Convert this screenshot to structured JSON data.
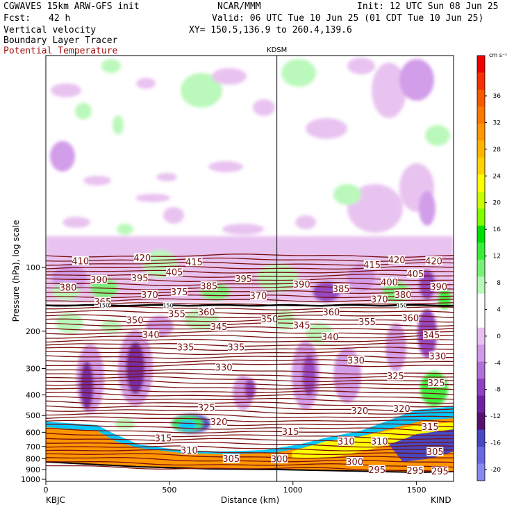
{
  "header": {
    "model_title": "CGWAVES 15km ARW-GFS init",
    "org": "NCAR/MMM",
    "init": "Init: 12 UTC Sun 08 Jun 25",
    "fcst_label": "Fcst:",
    "fcst_value": "42 h",
    "valid": "Valid: 06 UTC Tue 10 Jun 25 (01 CDT Tue 10 Jun 25)",
    "field1": "Vertical velocity",
    "field2": "Boundary Layer Tracer",
    "field3": "Potential Temperature",
    "xy_range": "XY= 150.5,136.9 to 260.4,139.6"
  },
  "colors": {
    "potential_temperature": "#7a0f0f",
    "tropopause_line": "#000000"
  },
  "chart_data": {
    "type": "cross-section",
    "station_marker": "KDSM",
    "station_marker_x_km": 935,
    "left_endpoint": "KBJC",
    "right_endpoint": "KIND",
    "xlabel": "Distance (km)",
    "ylabel": "Pressure (hPa), log scale",
    "xlim": [
      0,
      1650
    ],
    "x_ticks": [
      0,
      500,
      1000,
      1500
    ],
    "y_ticks": [
      100,
      200,
      300,
      400,
      500,
      600,
      700,
      800,
      900,
      1000
    ],
    "y_scale": "log",
    "colorbar": {
      "units": "cm s⁻¹",
      "tick_labels": [
        36,
        32,
        28,
        24,
        20,
        16,
        12,
        8,
        4,
        0,
        -4,
        -8,
        -12,
        -16,
        -20
      ],
      "colors": [
        "#f00000",
        "#f43000",
        "#f85800",
        "#fc7800",
        "#ff9600",
        "#ffb400",
        "#ffd200",
        "#ffff00",
        "#c8ff00",
        "#80ff00",
        "#00e000",
        "#38ee38",
        "#78f078",
        "#b8f8b8",
        "#ffffff",
        "#ffffff",
        "#e8c0f0",
        "#d098e8",
        "#b070d8",
        "#9040c0",
        "#7020a0",
        "#5a1070",
        "#4848c0",
        "#6868e0",
        "#8888f0"
      ]
    },
    "theta_labels": [
      {
        "x": 140,
        "p": 93,
        "v": "410"
      },
      {
        "x": 390,
        "p": 90,
        "v": "420"
      },
      {
        "x": 600,
        "p": 94,
        "v": "415"
      },
      {
        "x": 1320,
        "p": 97,
        "v": "415"
      },
      {
        "x": 1420,
        "p": 92,
        "v": "420"
      },
      {
        "x": 1570,
        "p": 93,
        "v": "420"
      },
      {
        "x": 520,
        "p": 105,
        "v": "405"
      },
      {
        "x": 1495,
        "p": 107,
        "v": "405"
      },
      {
        "x": 215,
        "p": 114,
        "v": "390"
      },
      {
        "x": 380,
        "p": 112,
        "v": "395"
      },
      {
        "x": 800,
        "p": 113,
        "v": "395"
      },
      {
        "x": 1035,
        "p": 120,
        "v": "390"
      },
      {
        "x": 1390,
        "p": 117,
        "v": "400"
      },
      {
        "x": 1590,
        "p": 123,
        "v": "390"
      },
      {
        "x": 90,
        "p": 124,
        "v": "380"
      },
      {
        "x": 660,
        "p": 122,
        "v": "385"
      },
      {
        "x": 1195,
        "p": 126,
        "v": "385"
      },
      {
        "x": 1445,
        "p": 134,
        "v": "380"
      },
      {
        "x": 420,
        "p": 134,
        "v": "370"
      },
      {
        "x": 540,
        "p": 130,
        "v": "375"
      },
      {
        "x": 860,
        "p": 136,
        "v": "370"
      },
      {
        "x": 230,
        "p": 145,
        "v": "365"
      },
      {
        "x": 1350,
        "p": 141,
        "v": "370"
      },
      {
        "x": 650,
        "p": 162,
        "v": "360"
      },
      {
        "x": 1155,
        "p": 162,
        "v": "360"
      },
      {
        "x": 1475,
        "p": 173,
        "v": "360"
      },
      {
        "x": 530,
        "p": 165,
        "v": "355"
      },
      {
        "x": 1300,
        "p": 180,
        "v": "355"
      },
      {
        "x": 360,
        "p": 177,
        "v": "350"
      },
      {
        "x": 905,
        "p": 175,
        "v": "350"
      },
      {
        "x": 700,
        "p": 190,
        "v": "345"
      },
      {
        "x": 1035,
        "p": 187,
        "v": "345"
      },
      {
        "x": 1560,
        "p": 208,
        "v": "345"
      },
      {
        "x": 425,
        "p": 207,
        "v": "340"
      },
      {
        "x": 1150,
        "p": 212,
        "v": "340"
      },
      {
        "x": 565,
        "p": 237,
        "v": "335"
      },
      {
        "x": 770,
        "p": 237,
        "v": "335"
      },
      {
        "x": 720,
        "p": 296,
        "v": "330"
      },
      {
        "x": 1255,
        "p": 274,
        "v": "330"
      },
      {
        "x": 1585,
        "p": 262,
        "v": "330"
      },
      {
        "x": 1415,
        "p": 325,
        "v": "325"
      },
      {
        "x": 1580,
        "p": 350,
        "v": "325"
      },
      {
        "x": 650,
        "p": 458,
        "v": "325"
      },
      {
        "x": 1270,
        "p": 473,
        "v": "320"
      },
      {
        "x": 1440,
        "p": 463,
        "v": "320"
      },
      {
        "x": 700,
        "p": 535,
        "v": "320"
      },
      {
        "x": 475,
        "p": 637,
        "v": "315"
      },
      {
        "x": 990,
        "p": 594,
        "v": "315"
      },
      {
        "x": 1555,
        "p": 563,
        "v": "315"
      },
      {
        "x": 580,
        "p": 727,
        "v": "310"
      },
      {
        "x": 1215,
        "p": 660,
        "v": "310"
      },
      {
        "x": 1350,
        "p": 660,
        "v": "310"
      },
      {
        "x": 750,
        "p": 797,
        "v": "305"
      },
      {
        "x": 1575,
        "p": 740,
        "v": "305"
      },
      {
        "x": 945,
        "p": 800,
        "v": "300"
      },
      {
        "x": 1250,
        "p": 825,
        "v": "300"
      },
      {
        "x": 1340,
        "p": 900,
        "v": "295"
      },
      {
        "x": 1495,
        "p": 908,
        "v": "295"
      },
      {
        "x": 1595,
        "p": 915,
        "v": "295"
      },
      {
        "x": 235,
        "p": 151,
        "v": "150"
      },
      {
        "x": 495,
        "p": 151,
        "v": "150"
      },
      {
        "x": 1440,
        "p": 151,
        "v": "150"
      }
    ],
    "theta_lines_note": "Potential Temperature"
  }
}
